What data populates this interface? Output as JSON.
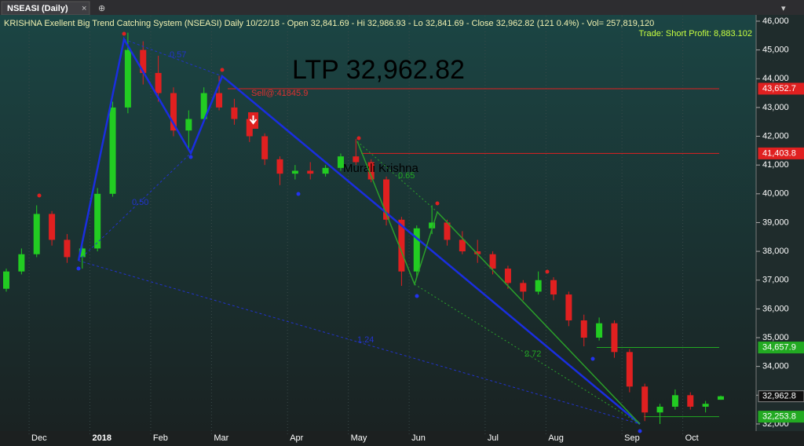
{
  "tab": "NSEASI (Daily)",
  "header": "KRISHNA Exellent Big Trend Catching System (NSEASI) Daily  10/22/18 - Open 32,841.69 - Hi 32,986.93 - Lo 32,841.69 - Close 32,962.82 (121 0.4%) - Vol= 257,819,120",
  "trade_info": "Trade: Short Profit: 8,883.102",
  "ltp": "LTP 32,962.82",
  "sell_label": "Sell@:41845.9",
  "watermark": "Murali Krishna",
  "ratios": [
    "0.57",
    "0.50",
    "1.24",
    "0.65",
    "2.72"
  ],
  "chart_data": {
    "type": "candlestick",
    "categories": [
      null,
      null,
      "Dec",
      null,
      null,
      null,
      "2018",
      null,
      null,
      null,
      "Feb",
      null,
      null,
      null,
      "Mar",
      null,
      null,
      null,
      null,
      "Apr",
      null,
      null,
      null,
      "May",
      null,
      null,
      null,
      "Jun",
      null,
      null,
      null,
      null,
      "Jul",
      null,
      null,
      null,
      "Aug",
      null,
      null,
      null,
      null,
      "Sep",
      null,
      null,
      null,
      "Oct",
      null,
      null
    ],
    "open": [
      36700,
      37300,
      37900,
      39300,
      38400,
      37800,
      38100,
      40000,
      43000,
      45000,
      44200,
      43500,
      42200,
      42600,
      43500,
      43000,
      42600,
      42000,
      41200,
      40700,
      40800,
      40700,
      40900,
      41300,
      41100,
      40500,
      39100,
      37300,
      38800,
      39000,
      38400,
      38000,
      37900,
      37400,
      36900,
      36600,
      37000,
      36500,
      35600,
      35000,
      35500,
      34500,
      33300,
      32400,
      32600,
      33000,
      32600,
      32841.69
    ],
    "high": [
      37400,
      38100,
      39600,
      39400,
      38600,
      38300,
      40200,
      43200,
      45600,
      45300,
      44800,
      43700,
      42900,
      43700,
      44100,
      43300,
      42700,
      42100,
      41300,
      41000,
      41100,
      41000,
      41400,
      41900,
      41200,
      40600,
      39200,
      38900,
      39600,
      39100,
      38700,
      38400,
      38000,
      37500,
      37000,
      37300,
      37100,
      36600,
      35800,
      35700,
      35600,
      34600,
      33400,
      32700,
      33200,
      33100,
      32800,
      32986.93
    ],
    "low": [
      36600,
      37200,
      37800,
      38200,
      37600,
      37400,
      38000,
      39900,
      42800,
      43800,
      43200,
      42000,
      41500,
      42500,
      42900,
      42400,
      41800,
      41000,
      40300,
      40500,
      40500,
      40600,
      40800,
      41000,
      40400,
      38900,
      36800,
      37100,
      38600,
      38200,
      37900,
      37600,
      37200,
      36700,
      36300,
      36500,
      36300,
      35400,
      34700,
      34900,
      34300,
      33100,
      32100,
      32000,
      32500,
      32500,
      32400,
      32841.69
    ],
    "close": [
      37300,
      37900,
      39300,
      38400,
      37800,
      38100,
      40000,
      43000,
      45000,
      44200,
      43500,
      42200,
      42600,
      43500,
      43000,
      42600,
      42000,
      41200,
      40700,
      40800,
      40700,
      40900,
      41300,
      41100,
      40500,
      39100,
      37300,
      38800,
      39000,
      38400,
      38000,
      37900,
      37400,
      36900,
      36600,
      37000,
      36500,
      35600,
      35000,
      35500,
      34500,
      33300,
      32400,
      32600,
      33000,
      32600,
      32700,
      32962.82
    ],
    "up_color": "#22cc22",
    "down_color": "#e02020",
    "ylim": [
      31780,
      46190
    ],
    "yticks": [
      {
        "value": 32000,
        "label": "32,000"
      },
      {
        "value": 33000,
        "label": "33,000"
      },
      {
        "value": 34000,
        "label": "34,000"
      },
      {
        "value": 35000,
        "label": "35,000"
      },
      {
        "value": 36000,
        "label": "36,000"
      },
      {
        "value": 37000,
        "label": "37,000"
      },
      {
        "value": 38000,
        "label": "38,000"
      },
      {
        "value": 39000,
        "label": "39,000"
      },
      {
        "value": 40000,
        "label": "40,000"
      },
      {
        "value": 41000,
        "label": "41,000"
      },
      {
        "value": 42000,
        "label": "42,000"
      },
      {
        "value": 43000,
        "label": "43,000"
      },
      {
        "value": 44000,
        "label": "44,000"
      },
      {
        "value": 45000,
        "label": "45,000"
      },
      {
        "value": 46000,
        "label": "46,000"
      }
    ],
    "levels": [
      {
        "value": 43652.7,
        "label": "43,652.7",
        "color": "#e02020"
      },
      {
        "value": 41403.8,
        "label": "41,403.8",
        "color": "#e02020"
      },
      {
        "value": 34657.9,
        "label": "34,657.9",
        "color": "#22aa22"
      },
      {
        "value": 32962.8,
        "label": "32,962.8",
        "color": "#111111"
      },
      {
        "value": 32253.8,
        "label": "32,253.8",
        "color": "#22aa22"
      }
    ]
  }
}
